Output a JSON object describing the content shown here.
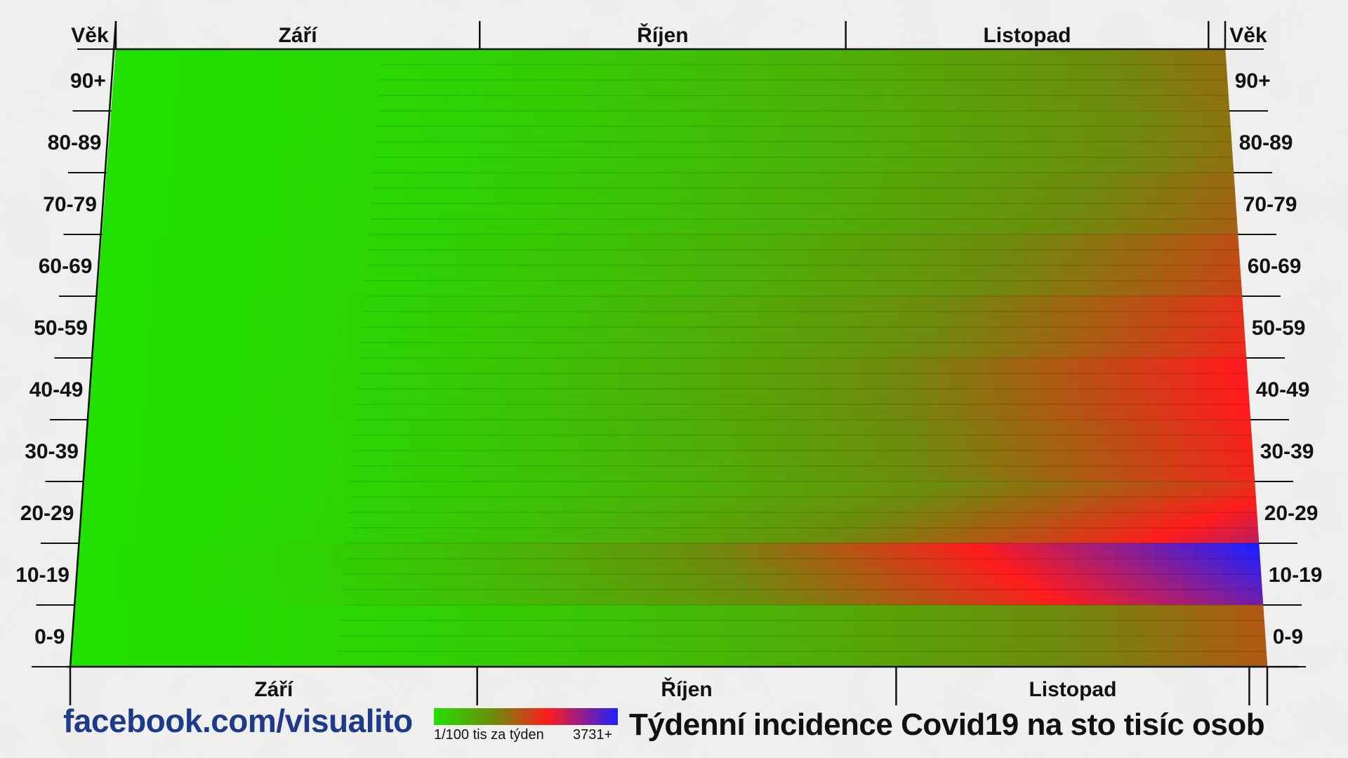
{
  "chart_data": {
    "type": "heatmap",
    "title": "Týdenní incidence Covid19 na sto tisíc osob",
    "ylabel": "Věk",
    "months": [
      "Září",
      "Říjen",
      "Listopad"
    ],
    "age_groups": [
      "0-9",
      "10-19",
      "20-29",
      "30-39",
      "40-49",
      "50-59",
      "60-69",
      "70-79",
      "80-89",
      "90+"
    ],
    "colorscale": {
      "min_label": "1/100 tis za týden",
      "max_label": "3731+",
      "max_value": 3731,
      "colors": [
        "#22e000",
        "#6f8a0c",
        "#ff1c1c",
        "#2020ff"
      ]
    },
    "approx_peak_incidence_by_age_end_of_period": {
      "0-9": 900,
      "10-19": 3731,
      "20-29": 1300,
      "30-39": 1500,
      "40-49": 1600,
      "50-59": 1300,
      "60-69": 1000,
      "70-79": 750,
      "80-89": 650,
      "90+": 700
    }
  },
  "footer": {
    "source": "facebook.com/visualito"
  }
}
